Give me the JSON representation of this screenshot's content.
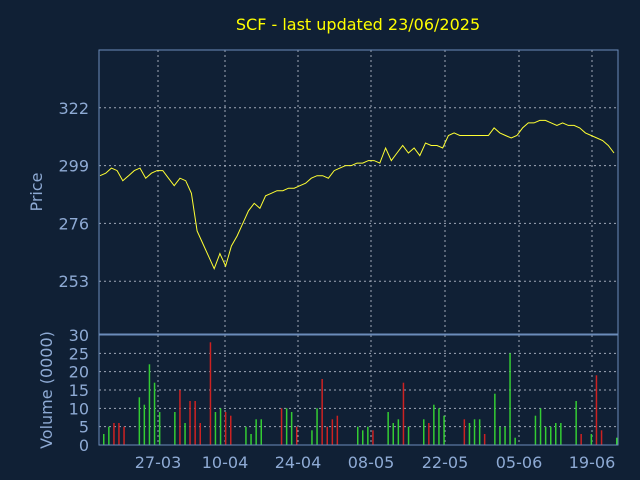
{
  "chart_data": [
    {
      "type": "line",
      "title": "SCF - last updated 23/06/2025",
      "ylabel": "Price",
      "ylim": [
        232,
        345
      ],
      "yticks": [
        253,
        276,
        299,
        322
      ],
      "xticks": [
        "27-03",
        "10-04",
        "24-04",
        "08-05",
        "22-05",
        "05-06",
        "19-06"
      ],
      "grid": true,
      "series": [
        {
          "values": [
            295,
            296,
            298,
            297,
            293,
            295,
            297,
            298,
            294,
            296,
            297,
            297,
            294,
            291,
            294,
            293,
            288,
            273,
            268,
            263,
            258,
            264,
            259,
            267,
            271,
            276,
            281,
            284,
            282,
            287,
            288,
            289,
            289,
            290,
            290,
            291,
            292,
            294,
            295,
            295,
            294,
            297,
            298,
            299,
            299,
            300,
            300,
            301,
            301,
            300,
            306,
            301,
            304,
            307,
            304,
            306,
            303,
            308,
            307,
            307,
            306,
            311,
            312,
            311,
            311,
            311,
            311,
            311,
            311,
            314,
            312,
            311,
            310,
            311,
            314,
            316,
            316,
            317,
            317,
            316,
            315,
            316,
            315,
            315,
            314,
            312,
            311,
            310,
            309,
            307,
            304
          ]
        }
      ]
    },
    {
      "type": "bar",
      "ylabel": "Volume (0000)",
      "ylim": [
        0,
        30
      ],
      "yticks": [
        0,
        5,
        10,
        15,
        20,
        25,
        30
      ],
      "xticks": [
        "27-03",
        "10-04",
        "24-04",
        "08-05",
        "22-05",
        "05-06",
        "19-06"
      ],
      "series": [
        {
          "values": [
            3,
            5,
            6,
            6,
            5,
            0,
            0,
            13,
            11,
            22,
            17,
            9,
            0,
            0,
            9,
            15,
            6,
            12,
            12,
            6,
            0,
            28,
            9,
            10,
            9,
            8,
            0,
            0,
            5,
            3,
            7,
            7,
            0,
            0,
            0,
            10,
            10,
            9,
            5,
            0,
            0,
            4,
            10,
            18,
            5,
            7,
            8,
            0,
            0,
            0,
            5,
            4,
            5,
            4,
            0,
            0,
            9,
            6,
            7,
            17,
            5,
            0,
            0,
            7,
            6,
            11,
            10,
            8,
            0,
            0,
            0,
            7,
            6,
            7,
            7,
            3,
            0,
            14,
            5,
            5,
            25,
            2,
            0,
            0,
            0,
            8,
            10,
            5,
            5,
            6,
            6,
            0,
            0,
            12,
            3,
            0,
            3,
            19,
            4,
            0,
            0,
            2
          ],
          "colors": [
            "#33cc33",
            "#33cc33",
            "#cc2222",
            "#cc2222",
            "#cc2222",
            "#33cc33",
            "#33cc33",
            "#33cc33",
            "#33cc33",
            "#33cc33",
            "#33cc33",
            "#33cc33",
            "#33cc33",
            "#33cc33",
            "#33cc33",
            "#cc2222",
            "#33cc33",
            "#cc2222",
            "#cc2222",
            "#cc2222",
            "#33cc33",
            "#cc2222",
            "#33cc33",
            "#33cc33",
            "#cc2222",
            "#cc2222",
            "#33cc33",
            "#33cc33",
            "#33cc33",
            "#33cc33",
            "#33cc33",
            "#33cc33",
            "#33cc33",
            "#33cc33",
            "#33cc33",
            "#cc2222",
            "#33cc33",
            "#33cc33",
            "#cc2222",
            "#33cc33",
            "#33cc33",
            "#33cc33",
            "#33cc33",
            "#cc2222",
            "#cc2222",
            "#cc2222",
            "#cc2222",
            "#33cc33",
            "#33cc33",
            "#33cc33",
            "#33cc33",
            "#33cc33",
            "#33cc33",
            "#cc2222",
            "#33cc33",
            "#33cc33",
            "#33cc33",
            "#33cc33",
            "#33cc33",
            "#cc2222",
            "#33cc33",
            "#33cc33",
            "#33cc33",
            "#33cc33",
            "#cc2222",
            "#33cc33",
            "#33cc33",
            "#33cc33",
            "#33cc33",
            "#33cc33",
            "#33cc33",
            "#cc2222",
            "#33cc33",
            "#33cc33",
            "#33cc33",
            "#cc2222",
            "#33cc33",
            "#33cc33",
            "#33cc33",
            "#33cc33",
            "#33cc33",
            "#33cc33",
            "#33cc33",
            "#33cc33",
            "#33cc33",
            "#33cc33",
            "#33cc33",
            "#33cc33",
            "#33cc33",
            "#33cc33",
            "#33cc33",
            "#33cc33",
            "#33cc33",
            "#33cc33",
            "#cc2222",
            "#33cc33",
            "#33cc33",
            "#cc2222",
            "#cc2222",
            "#33cc33",
            "#33cc33",
            "#33cc33"
          ]
        }
      ]
    }
  ],
  "colors": {
    "background": "#102035",
    "axis": "#6b8cba",
    "grid": "#a0a8b8",
    "text": "#8eaad4",
    "title": "#ffff00",
    "price_line": "#ffff33",
    "volume_up": "#33cc33",
    "volume_down": "#cc2222"
  }
}
